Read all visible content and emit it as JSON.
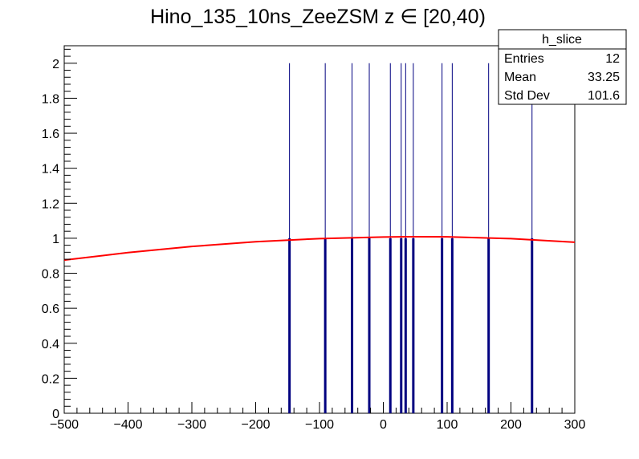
{
  "chart_data": {
    "type": "bar",
    "title": "Hino_135_10ns_ZeeZSM z  ∈ [20,40)",
    "xlim": [
      -500,
      300
    ],
    "ylim": [
      0,
      2.1
    ],
    "x_ticks": [
      -500,
      -400,
      -300,
      -200,
      -100,
      0,
      100,
      200,
      300
    ],
    "x_tick_labels": [
      "−500",
      "−400",
      "−300",
      "−200",
      "−100",
      "0",
      "100",
      "200",
      "300"
    ],
    "y_ticks": [
      0,
      0.2,
      0.4,
      0.6,
      0.8,
      1,
      1.2,
      1.4,
      1.6,
      1.8,
      2
    ],
    "y_tick_labels": [
      "0",
      "0.2",
      "0.4",
      "0.6",
      "0.8",
      "1",
      "1.2",
      "1.4",
      "1.6",
      "1.8",
      "2"
    ],
    "histogram": {
      "name": "h_slice",
      "color": "#000080",
      "x": [
        -147,
        -91,
        -49,
        -22,
        11,
        28,
        35,
        47,
        92,
        108,
        165,
        233
      ],
      "values": [
        1,
        1,
        1,
        1,
        1,
        1,
        1,
        1,
        1,
        1,
        1,
        1
      ]
    },
    "fit_curve": {
      "color": "#ff0000",
      "x": [
        -500,
        -400,
        -300,
        -200,
        -100,
        0,
        50,
        100,
        200,
        300
      ],
      "y": [
        0.875,
        0.918,
        0.953,
        0.98,
        0.998,
        1.007,
        1.009,
        1.008,
        0.998,
        0.977
      ]
    },
    "grid": false,
    "stats_box": {
      "title": "h_slice",
      "rows": [
        {
          "label": "Entries",
          "value": "12"
        },
        {
          "label": "Mean",
          "value": "33.25"
        },
        {
          "label": "Std Dev",
          "value": "101.6"
        }
      ]
    }
  }
}
